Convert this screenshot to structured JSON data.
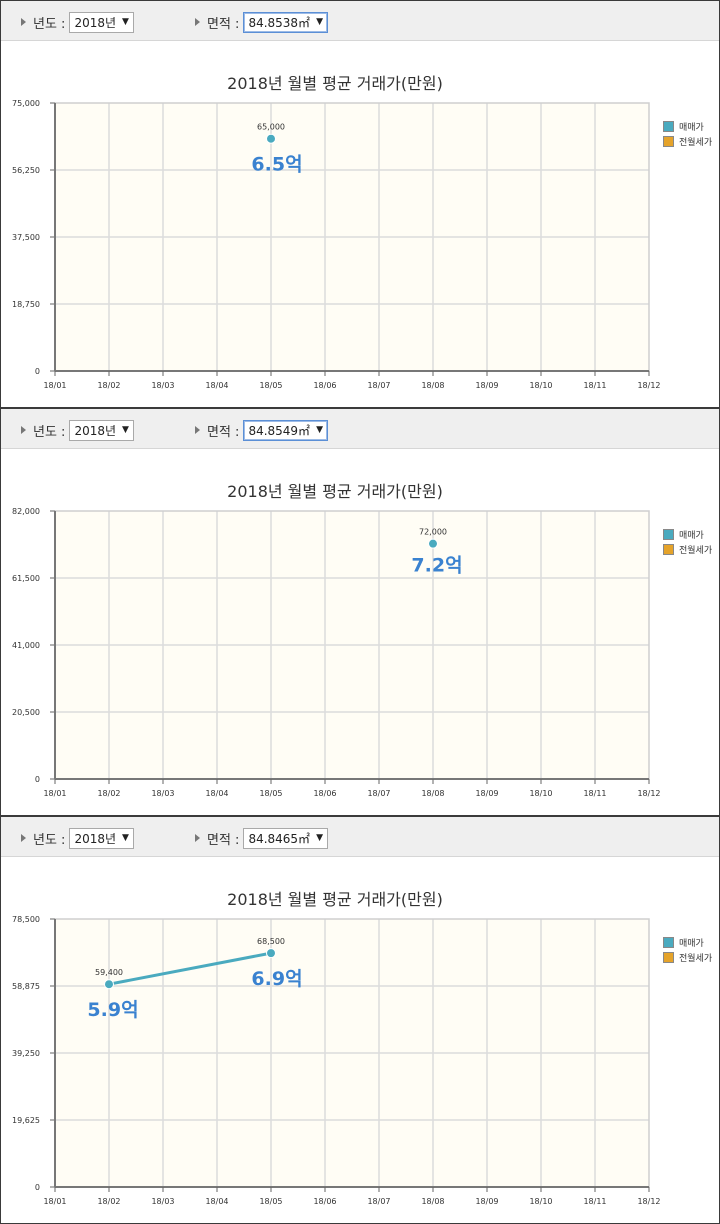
{
  "colors": {
    "trade": "#4aaabf",
    "rent": "#e5a32a",
    "plot_bg": "#fffdf5"
  },
  "panels": [
    {
      "year_label": "년도 :",
      "year_value": "2018년",
      "area_label": "면적 :",
      "area_value": "84.8538㎡",
      "area_focused": true,
      "legend": [
        "매매가",
        "전월세가"
      ],
      "chart_data": {
        "type": "line",
        "title": "2018년 월별 평균 거래가(만원)",
        "categories": [
          "18/01",
          "18/02",
          "18/03",
          "18/04",
          "18/05",
          "18/06",
          "18/07",
          "18/08",
          "18/09",
          "18/10",
          "18/11",
          "18/12"
        ],
        "yticks": [
          "0",
          "18,750",
          "37,500",
          "56,250",
          "75,000"
        ],
        "ylim": [
          0,
          75000
        ],
        "series": [
          {
            "name": "매매가",
            "points": [
              {
                "x": "18/05",
                "y": 65000,
                "label": "65,000",
                "annotation": "6.5억"
              }
            ]
          },
          {
            "name": "전월세가",
            "points": []
          }
        ]
      }
    },
    {
      "year_label": "년도 :",
      "year_value": "2018년",
      "area_label": "면적 :",
      "area_value": "84.8549㎡",
      "area_focused": true,
      "legend": [
        "매매가",
        "전월세가"
      ],
      "chart_data": {
        "type": "line",
        "title": "2018년 월별 평균 거래가(만원)",
        "categories": [
          "18/01",
          "18/02",
          "18/03",
          "18/04",
          "18/05",
          "18/06",
          "18/07",
          "18/08",
          "18/09",
          "18/10",
          "18/11",
          "18/12"
        ],
        "yticks": [
          "0",
          "20,500",
          "41,000",
          "61,500",
          "82,000"
        ],
        "ylim": [
          0,
          82000
        ],
        "series": [
          {
            "name": "매매가",
            "points": [
              {
                "x": "18/08",
                "y": 72000,
                "label": "72,000",
                "annotation": "7.2억"
              }
            ]
          },
          {
            "name": "전월세가",
            "points": []
          }
        ]
      }
    },
    {
      "year_label": "년도 :",
      "year_value": "2018년",
      "area_label": "면적 :",
      "area_value": "84.8465㎡",
      "area_focused": false,
      "legend": [
        "매매가",
        "전월세가"
      ],
      "chart_data": {
        "type": "line",
        "title": "2018년 월별 평균 거래가(만원)",
        "categories": [
          "18/01",
          "18/02",
          "18/03",
          "18/04",
          "18/05",
          "18/06",
          "18/07",
          "18/08",
          "18/09",
          "18/10",
          "18/11",
          "18/12"
        ],
        "yticks": [
          "0",
          "19,625",
          "39,250",
          "58,875",
          "78,500"
        ],
        "ylim": [
          0,
          78500
        ],
        "series": [
          {
            "name": "매매가",
            "points": [
              {
                "x": "18/02",
                "y": 59400,
                "label": "59,400",
                "annotation": "5.9억"
              },
              {
                "x": "18/05",
                "y": 68500,
                "label": "68,500",
                "annotation": "6.9억"
              }
            ]
          },
          {
            "name": "전월세가",
            "points": []
          }
        ]
      }
    }
  ]
}
